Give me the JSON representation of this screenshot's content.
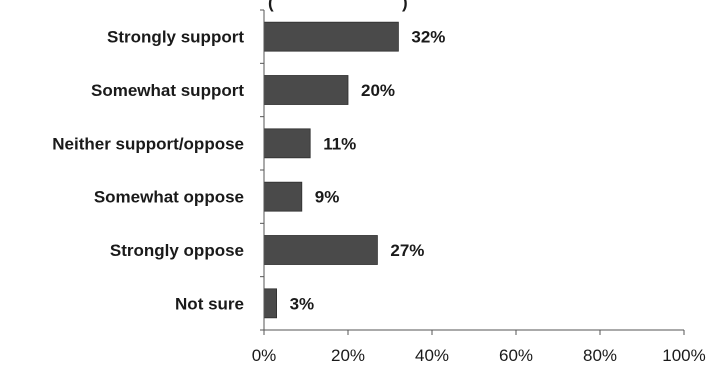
{
  "top_fragment": {
    "left": "(",
    "right": ")"
  },
  "chart_data": {
    "type": "bar",
    "orientation": "horizontal",
    "categories": [
      "Strongly support",
      "Somewhat support",
      "Neither support/oppose",
      "Somewhat oppose",
      "Strongly oppose",
      "Not sure"
    ],
    "values": [
      32,
      20,
      11,
      9,
      27,
      3
    ],
    "data_labels": [
      "32%",
      "20%",
      "11%",
      "9%",
      "27%",
      "3%"
    ],
    "xlim": [
      0,
      100
    ],
    "x_ticks": [
      0,
      20,
      40,
      60,
      80,
      100
    ],
    "x_tick_labels": [
      "0%",
      "20%",
      "40%",
      "60%",
      "80%",
      "100%"
    ],
    "grid": false,
    "bar_color": "#4a4a4a"
  }
}
